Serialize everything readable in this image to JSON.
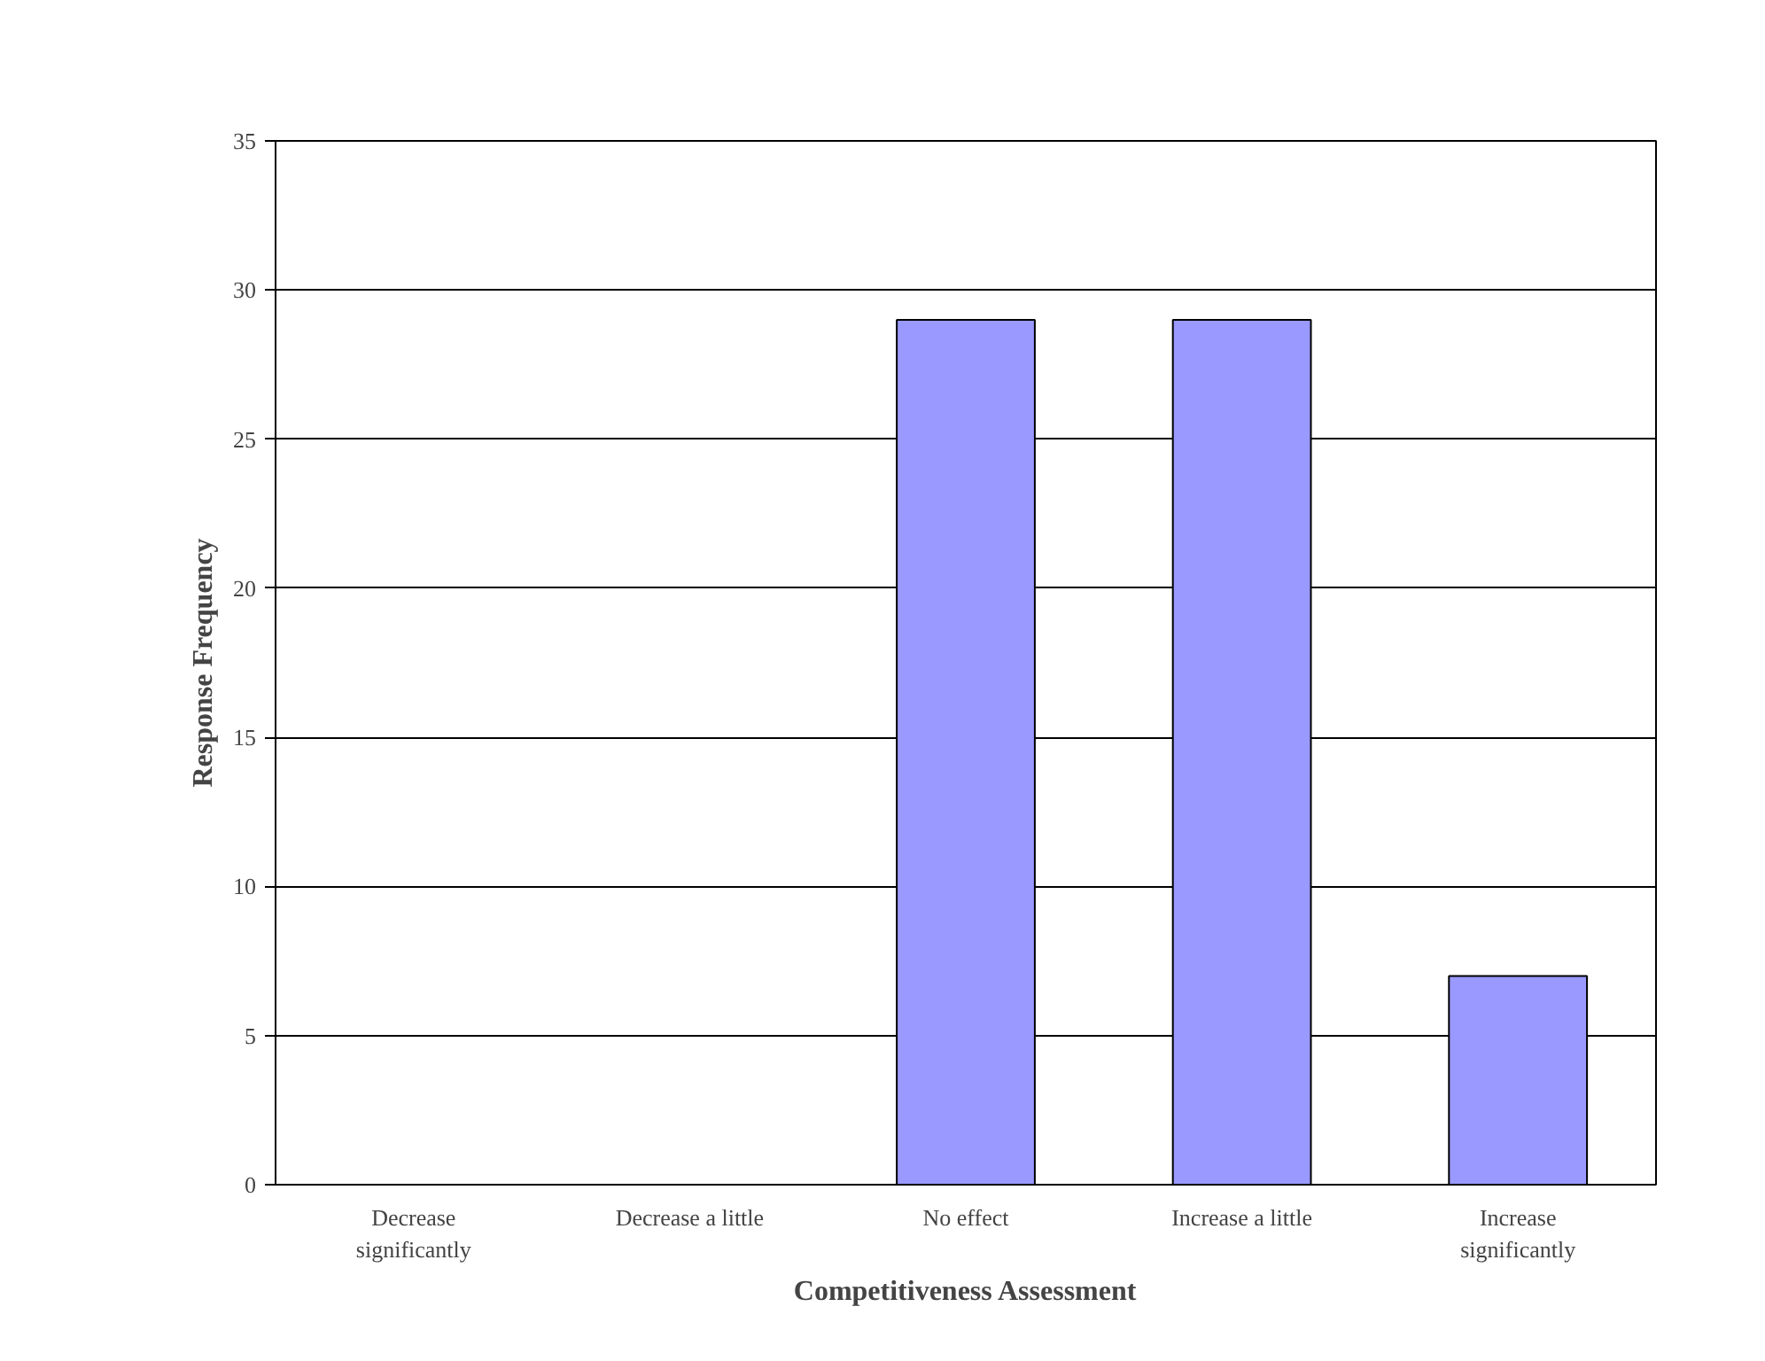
{
  "chart_data": {
    "type": "bar",
    "xlabel": "Competitiveness Assessment",
    "ylabel": "Response Frequency",
    "categories": [
      "Decrease significantly",
      "Decrease a little",
      "No effect",
      "Increase a little",
      "Increase significantly"
    ],
    "values": [
      0,
      0,
      29,
      29,
      7
    ],
    "color": "#9999ff",
    "ylim": [
      0,
      35
    ],
    "yticks": [
      0,
      5,
      10,
      15,
      20,
      25,
      30,
      35
    ],
    "grid": "y"
  }
}
